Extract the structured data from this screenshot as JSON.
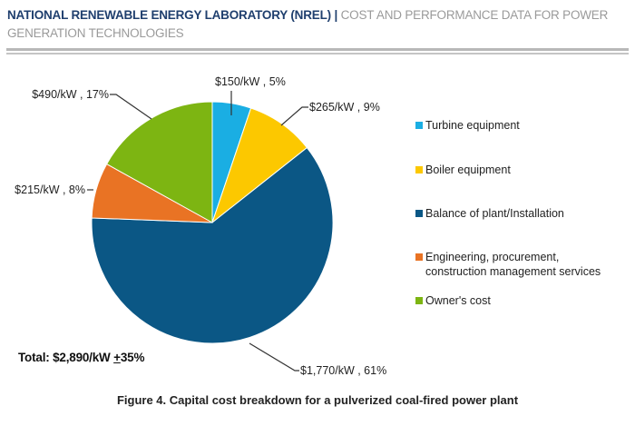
{
  "header": {
    "org": "NATIONAL RENEWABLE ENERGY LABORATORY (NREL)",
    "separator": "|",
    "subtitle": "COST AND PERFORMANCE DATA FOR POWER GENERATION TECHNOLOGIES"
  },
  "chart_data": {
    "type": "pie",
    "title": "Figure 4. Capital cost breakdown for a pulverized coal-fired power plant",
    "start_angle": "12 o'clock",
    "direction": "clockwise",
    "legend_position": "right",
    "unit": "$/kW",
    "slices": [
      {
        "name": "Turbine equipment",
        "value": 150,
        "percent": 5,
        "label": "$150/kW , 5%",
        "color": "#1aaee3"
      },
      {
        "name": "Boiler equipment",
        "value": 265,
        "percent": 9,
        "label": "$265/kW , 9%",
        "color": "#fcc800"
      },
      {
        "name": "Balance of plant/Installation",
        "value": 1770,
        "percent": 61,
        "label": "$1,770/kW , 61%",
        "color": "#0b5785"
      },
      {
        "name": "Engineering, procurement, construction management services",
        "legend_lines": [
          "Engineering, procurement,",
          "construction management services"
        ],
        "value": 215,
        "percent": 8,
        "label": "$215/kW , 8%",
        "color": "#e97324"
      },
      {
        "name": "Owner's cost",
        "value": 490,
        "percent": 17,
        "label": "$490/kW , 17%",
        "color": "#7db512"
      }
    ],
    "total": {
      "prefix": "Total: $2,890/kW ",
      "pm": "+",
      "suffix": "35%"
    }
  }
}
